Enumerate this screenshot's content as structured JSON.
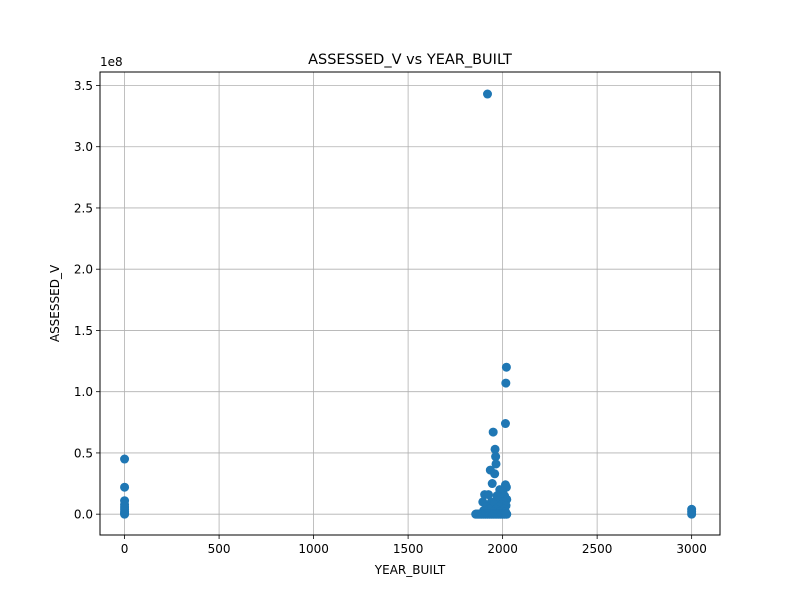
{
  "chart_data": {
    "type": "scatter",
    "title": "ASSESSED_V vs YEAR_BUILT",
    "xlabel": "YEAR_BUILT",
    "ylabel": "ASSESSED_V",
    "y_offset_label": "1e8",
    "xlim": [
      -130,
      3150
    ],
    "ylim": [
      -17000000,
      361000000
    ],
    "xticks": [
      0,
      500,
      1000,
      1500,
      2000,
      2500,
      3000
    ],
    "xtick_labels": [
      "0",
      "500",
      "1000",
      "1500",
      "2000",
      "2500",
      "3000"
    ],
    "yticks": [
      0,
      50000000,
      100000000,
      150000000,
      200000000,
      250000000,
      300000000,
      350000000
    ],
    "ytick_labels": [
      "0.0",
      "0.5",
      "1.0",
      "1.5",
      "2.0",
      "2.5",
      "3.0",
      "3.5"
    ],
    "grid": true,
    "marker_color": "#1f77b4",
    "points": [
      {
        "x": 0,
        "y": 45000000
      },
      {
        "x": 0,
        "y": 22000000
      },
      {
        "x": 0,
        "y": 11000000
      },
      {
        "x": 0,
        "y": 8000000
      },
      {
        "x": 0,
        "y": 6000000
      },
      {
        "x": 0,
        "y": 4000000
      },
      {
        "x": 0,
        "y": 2000000
      },
      {
        "x": 0,
        "y": 500000
      },
      {
        "x": 0,
        "y": 0
      },
      {
        "x": 1920,
        "y": 343000000
      },
      {
        "x": 2020,
        "y": 120000000
      },
      {
        "x": 2017,
        "y": 107000000
      },
      {
        "x": 2015,
        "y": 74000000
      },
      {
        "x": 1950,
        "y": 67000000
      },
      {
        "x": 1960,
        "y": 53000000
      },
      {
        "x": 1963,
        "y": 47000000
      },
      {
        "x": 1965,
        "y": 41000000
      },
      {
        "x": 1935,
        "y": 36000000
      },
      {
        "x": 1958,
        "y": 33000000
      },
      {
        "x": 1945,
        "y": 25000000
      },
      {
        "x": 2015,
        "y": 24000000
      },
      {
        "x": 2020,
        "y": 22000000
      },
      {
        "x": 1985,
        "y": 20000000
      },
      {
        "x": 2000,
        "y": 18000000
      },
      {
        "x": 1905,
        "y": 16000000
      },
      {
        "x": 1925,
        "y": 16000000
      },
      {
        "x": 1970,
        "y": 15000000
      },
      {
        "x": 2010,
        "y": 15000000
      },
      {
        "x": 1990,
        "y": 13000000
      },
      {
        "x": 2022,
        "y": 12000000
      },
      {
        "x": 1895,
        "y": 10000000
      },
      {
        "x": 1940,
        "y": 10000000
      },
      {
        "x": 1975,
        "y": 11000000
      },
      {
        "x": 2005,
        "y": 10000000
      },
      {
        "x": 1955,
        "y": 8000000
      },
      {
        "x": 1995,
        "y": 8000000
      },
      {
        "x": 2018,
        "y": 7000000
      },
      {
        "x": 1915,
        "y": 6000000
      },
      {
        "x": 1980,
        "y": 6000000
      },
      {
        "x": 1930,
        "y": 4000000
      },
      {
        "x": 1965,
        "y": 4000000
      },
      {
        "x": 2008,
        "y": 4000000
      },
      {
        "x": 1900,
        "y": 3000000
      },
      {
        "x": 1950,
        "y": 2000000
      },
      {
        "x": 1985,
        "y": 2000000
      },
      {
        "x": 2015,
        "y": 2000000
      },
      {
        "x": 1858,
        "y": 0
      },
      {
        "x": 1870,
        "y": 0
      },
      {
        "x": 1880,
        "y": 0
      },
      {
        "x": 1890,
        "y": 0
      },
      {
        "x": 1900,
        "y": 0
      },
      {
        "x": 1910,
        "y": 0
      },
      {
        "x": 1920,
        "y": 0
      },
      {
        "x": 1930,
        "y": 0
      },
      {
        "x": 1940,
        "y": 0
      },
      {
        "x": 1950,
        "y": 0
      },
      {
        "x": 1960,
        "y": 0
      },
      {
        "x": 1970,
        "y": 0
      },
      {
        "x": 1980,
        "y": 0
      },
      {
        "x": 1990,
        "y": 0
      },
      {
        "x": 2000,
        "y": 0
      },
      {
        "x": 2010,
        "y": 0
      },
      {
        "x": 2020,
        "y": 0
      },
      {
        "x": 3000,
        "y": 4000000
      },
      {
        "x": 3000,
        "y": 2000000
      },
      {
        "x": 3000,
        "y": 0
      }
    ]
  }
}
